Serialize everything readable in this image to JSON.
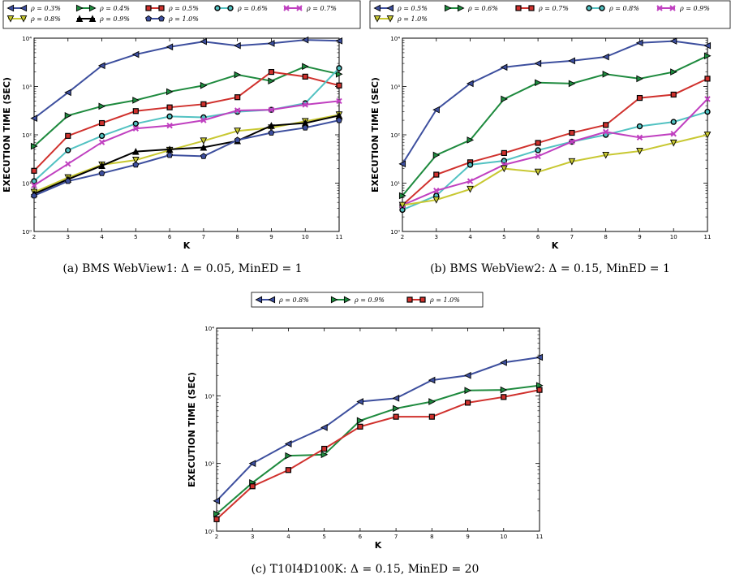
{
  "chart_data": [
    {
      "type": "line",
      "caption": "(a) BMS WebView1: Δ = 0.05, MinED = 1",
      "xlabel": "K",
      "ylabel": "EXECUTION TIME (SEC)",
      "yscale": "log",
      "xlim": [
        2,
        11
      ],
      "ylim": [
        1,
        10000
      ],
      "x": [
        2,
        3,
        4,
        5,
        6,
        7,
        8,
        9,
        10,
        11
      ],
      "x_ticks": [
        "2",
        "3",
        "4",
        "5",
        "6",
        "7",
        "8",
        "9",
        "10",
        "11"
      ],
      "y_ticks": [
        "10⁰",
        "10¹",
        "10²",
        "10³",
        "10⁴"
      ],
      "legend_position": "top-outside",
      "series": [
        {
          "name": "ρ = 0.3%",
          "color": "#3d4f9e",
          "marker": "tri-left",
          "values": [
            220,
            750,
            2700,
            4600,
            6600,
            8500,
            7000,
            7800,
            9200,
            8800
          ]
        },
        {
          "name": "ρ = 0.4%",
          "color": "#1e8a3e",
          "marker": "tri-right",
          "values": [
            58,
            250,
            390,
            520,
            780,
            1050,
            1750,
            1300,
            2600,
            1800
          ]
        },
        {
          "name": "ρ = 0.5%",
          "color": "#d0312d",
          "marker": "square",
          "values": [
            18,
            95,
            175,
            310,
            370,
            430,
            600,
            2000,
            1600,
            1050
          ]
        },
        {
          "name": "ρ = 0.6%",
          "color": "#52c2c2",
          "marker": "circle",
          "values": [
            11,
            48,
            95,
            170,
            240,
            230,
            300,
            330,
            450,
            2400
          ]
        },
        {
          "name": "ρ = 0.7%",
          "color": "#c040c0",
          "marker": "x",
          "values": [
            9,
            25,
            70,
            135,
            155,
            200,
            320,
            330,
            420,
            500
          ]
        },
        {
          "name": "ρ = 0.8%",
          "color": "#c8c832",
          "marker": "tri-down",
          "values": [
            6.5,
            13,
            24,
            30,
            48,
            75,
            120,
            140,
            190,
            260
          ]
        },
        {
          "name": "ρ = 0.9%",
          "color": "#000000",
          "marker": "tri-up",
          "values": [
            6,
            12,
            23,
            45,
            50,
            55,
            75,
            155,
            175,
            250
          ]
        },
        {
          "name": "ρ = 1.0%",
          "color": "#3d4f9e",
          "marker": "pentagon",
          "values": [
            5.5,
            11,
            16,
            24,
            38,
            36,
            78,
            110,
            140,
            200
          ]
        }
      ]
    },
    {
      "type": "line",
      "caption": "(b) BMS WebView2: Δ = 0.15, MinED = 1",
      "xlabel": "K",
      "ylabel": "EXECUTION TIME (SEC)",
      "yscale": "log",
      "xlim": [
        2,
        11
      ],
      "ylim": [
        1,
        10000
      ],
      "x": [
        2,
        3,
        4,
        5,
        6,
        7,
        8,
        9,
        10,
        11
      ],
      "x_ticks": [
        "2",
        "3",
        "4",
        "5",
        "6",
        "7",
        "8",
        "9",
        "10",
        "11"
      ],
      "y_ticks": [
        "10⁰",
        "10¹",
        "10²",
        "10³",
        "10⁴"
      ],
      "legend_position": "top-outside",
      "series": [
        {
          "name": "ρ = 0.5%",
          "color": "#3d4f9e",
          "marker": "tri-left",
          "values": [
            25,
            330,
            1150,
            2500,
            3000,
            3400,
            4100,
            8000,
            8700,
            7000
          ]
        },
        {
          "name": "ρ = 0.6%",
          "color": "#1e8a3e",
          "marker": "tri-right",
          "values": [
            5.5,
            38,
            78,
            550,
            1200,
            1150,
            1800,
            1450,
            2000,
            4300
          ]
        },
        {
          "name": "ρ = 0.7%",
          "color": "#d0312d",
          "marker": "square",
          "values": [
            3.5,
            15,
            27,
            42,
            68,
            110,
            160,
            580,
            680,
            1450
          ]
        },
        {
          "name": "ρ = 0.8%",
          "color": "#52c2c2",
          "marker": "circle",
          "values": [
            2.8,
            5.5,
            24,
            29,
            48,
            72,
            100,
            150,
            185,
            300
          ]
        },
        {
          "name": "ρ = 0.9%",
          "color": "#c040c0",
          "marker": "x",
          "values": [
            3.5,
            7,
            11,
            24,
            36,
            72,
            115,
            88,
            105,
            550
          ]
        },
        {
          "name": "ρ = 1.0%",
          "color": "#c8c832",
          "marker": "tri-down",
          "values": [
            3.5,
            4.5,
            7.5,
            20,
            17,
            28,
            38,
            46,
            68,
            100
          ]
        }
      ]
    },
    {
      "type": "line",
      "caption": "(c) T10I4D100K: Δ = 0.15, MinED = 20",
      "xlabel": "K",
      "ylabel": "EXECUTION TIME (SEC)",
      "yscale": "log",
      "xlim": [
        2,
        11
      ],
      "ylim": [
        10,
        10000
      ],
      "x": [
        2,
        3,
        4,
        5,
        6,
        7,
        8,
        9,
        10,
        11
      ],
      "x_ticks": [
        "2",
        "3",
        "4",
        "5",
        "6",
        "7",
        "8",
        "9",
        "10",
        "11"
      ],
      "y_ticks": [
        "10¹",
        "10²",
        "10³",
        "10⁴"
      ],
      "legend_position": "top-outside",
      "series": [
        {
          "name": "ρ = 0.8%",
          "color": "#3d4f9e",
          "marker": "tri-left",
          "values": [
            28,
            100,
            195,
            340,
            820,
            920,
            1700,
            2000,
            3100,
            3700
          ]
        },
        {
          "name": "ρ = 0.9%",
          "color": "#1e8a3e",
          "marker": "tri-right",
          "values": [
            18,
            52,
            130,
            135,
            430,
            650,
            820,
            1200,
            1220,
            1420
          ]
        },
        {
          "name": "ρ = 1.0%",
          "color": "#d0312d",
          "marker": "square",
          "values": [
            15,
            46,
            80,
            165,
            350,
            490,
            490,
            790,
            960,
            1220
          ]
        }
      ]
    }
  ]
}
